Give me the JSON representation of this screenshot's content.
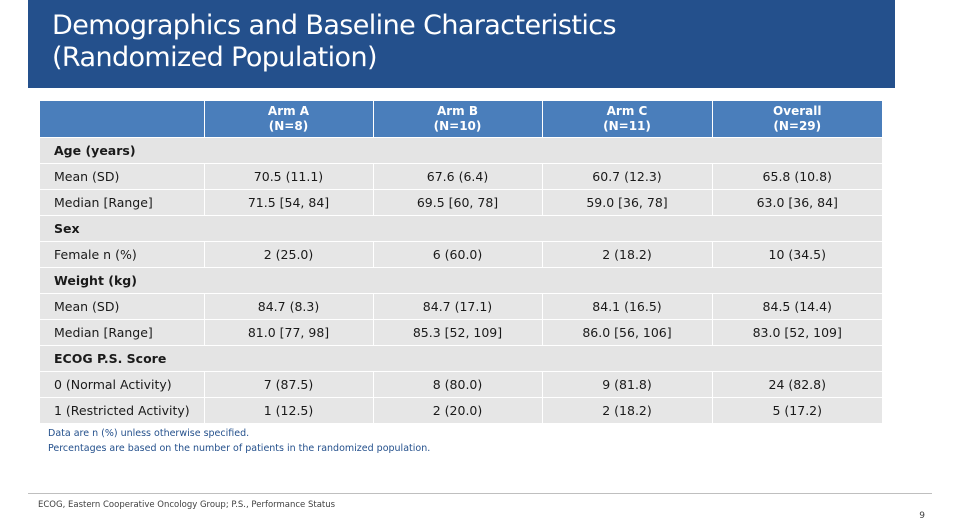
{
  "slide": {
    "title_line1": "Demographics and Baseline Characteristics",
    "title_line2": "(Randomized Population)",
    "footnotes": [
      "Data are n (%) unless otherwise specified.",
      "Percentages are based on the number of patients in the randomized population."
    ],
    "abbreviations": "ECOG, Eastern Cooperative Oncology Group; P.S., Performance Status",
    "page_number": "9"
  },
  "table": {
    "header": [
      {
        "line1": "",
        "line2": ""
      },
      {
        "line1": "Arm A",
        "line2": "(N=8)"
      },
      {
        "line1": "Arm B",
        "line2": "(N=10)"
      },
      {
        "line1": "Arm C",
        "line2": "(N=11)"
      },
      {
        "line1": "Overall",
        "line2": "(N=29)"
      }
    ],
    "sections": [
      {
        "label": "Age (years)",
        "rows": [
          {
            "label": "Mean (SD)",
            "values": [
              "70.5 (11.1)",
              "67.6 (6.4)",
              "60.7 (12.3)",
              "65.8 (10.8)"
            ]
          },
          {
            "label": "Median [Range]",
            "values": [
              "71.5 [54, 84]",
              "69.5 [60, 78]",
              "59.0 [36, 78]",
              "63.0 [36, 84]"
            ]
          }
        ]
      },
      {
        "label": "Sex",
        "rows": [
          {
            "label": "Female n (%)",
            "values": [
              "2 (25.0)",
              "6 (60.0)",
              "2 (18.2)",
              "10 (34.5)"
            ]
          }
        ]
      },
      {
        "label": "Weight (kg)",
        "rows": [
          {
            "label": "Mean (SD)",
            "values": [
              "84.7 (8.3)",
              "84.7 (17.1)",
              "84.1 (16.5)",
              "84.5 (14.4)"
            ]
          },
          {
            "label": "Median [Range]",
            "values": [
              "81.0 [77, 98]",
              "85.3 [52, 109]",
              "86.0 [56, 106]",
              "83.0 [52, 109]"
            ]
          }
        ]
      },
      {
        "label": "ECOG P.S. Score",
        "rows": [
          {
            "label": "0 (Normal Activity)",
            "values": [
              "7 (87.5)",
              "8 (80.0)",
              "9 (81.8)",
              "24 (82.8)"
            ]
          },
          {
            "label": "1 (Restricted Activity)",
            "values": [
              "1 (12.5)",
              "2 (20.0)",
              "2 (18.2)",
              "5 (17.2)"
            ]
          }
        ]
      }
    ]
  },
  "colors": {
    "title_bar": "#24508c",
    "header_fill": "#4a7ebb",
    "row_fill": "#e6e6e6",
    "footnote_text": "#24508c"
  }
}
